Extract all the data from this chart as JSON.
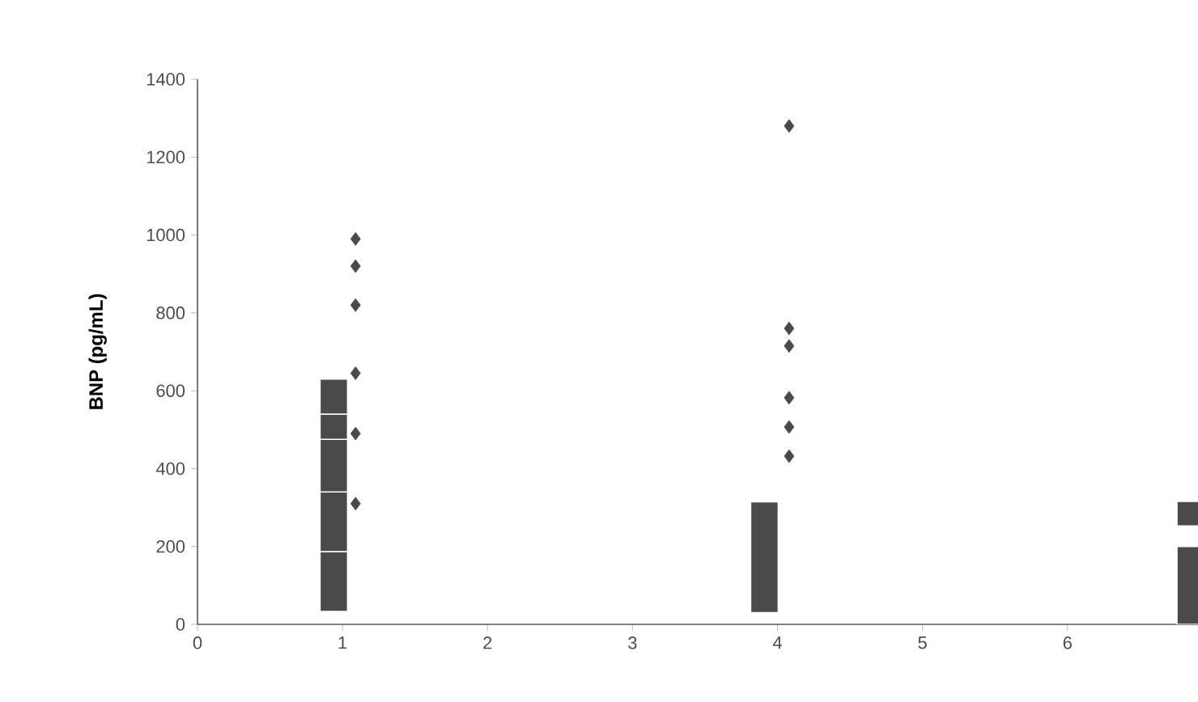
{
  "chart_data": {
    "type": "bar",
    "ylabel": "BNP (pg/mL)",
    "xlim": [
      0,
      6.9
    ],
    "xticks": [
      0,
      1,
      2,
      3,
      4,
      5,
      6
    ],
    "ylim": [
      0,
      1400
    ],
    "yticks": [
      0,
      200,
      400,
      600,
      800,
      1000,
      1200,
      1400
    ],
    "series": [
      {
        "color": "#4a4a4a",
        "x": [
          0.94,
          3.91,
          6.85
        ],
        "base": [
          33,
          30,
          0
        ],
        "values": [
          154,
          285,
          200
        ]
      },
      {
        "color": "#4a4a4a",
        "x": [
          0.94,
          6.85
        ],
        "base": [
          187,
          253
        ],
        "values": [
          153,
          63
        ]
      },
      {
        "color": "#4a4a4a",
        "x": [
          0.94
        ],
        "base": [
          340
        ],
        "values": [
          135
        ]
      },
      {
        "color": "#4a4a4a",
        "x": [
          0.94
        ],
        "base": [
          475
        ],
        "values": [
          65
        ]
      },
      {
        "color": "#4a4a4a",
        "x": [
          0.94
        ],
        "base": [
          540
        ],
        "values": [
          90
        ]
      },
      {
        "type": "scatter",
        "color": "#4a4a4a",
        "marker": "diamond",
        "x": [
          1.09,
          1.09,
          1.09,
          1.09,
          1.09,
          1.09,
          4.08,
          4.08,
          4.08,
          4.08,
          4.08,
          4.08
        ],
        "values": [
          990,
          920,
          820,
          645,
          490,
          310,
          1280,
          760,
          715,
          582,
          507,
          432
        ]
      }
    ]
  }
}
